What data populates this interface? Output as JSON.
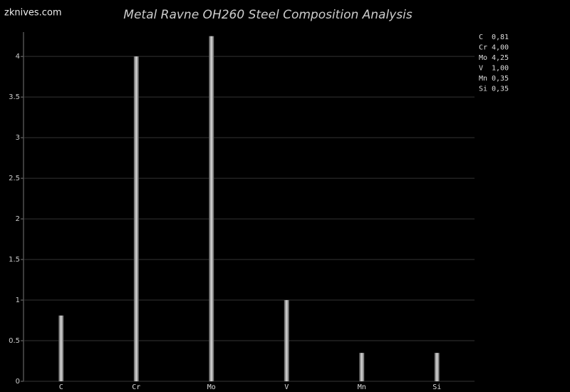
{
  "chart_data": {
    "type": "bar",
    "watermark": "zknives.com",
    "title": "Metal Ravne OH260 Steel Composition Analysis",
    "categories": [
      "C",
      "Cr",
      "Mo",
      "V",
      "Mn",
      "Si"
    ],
    "values": [
      0.81,
      4.0,
      4.25,
      1.0,
      0.35,
      0.35
    ],
    "value_labels": [
      "0,81",
      "4,00",
      "4,25",
      "1,00",
      "0,35",
      "0,35"
    ],
    "color": "#a0a0a0",
    "ylim": [
      0,
      4.3
    ],
    "yticks": [
      0,
      0.5,
      1,
      1.5,
      2,
      2.5,
      3,
      3.5,
      4
    ],
    "grid": true,
    "legend": "right"
  }
}
